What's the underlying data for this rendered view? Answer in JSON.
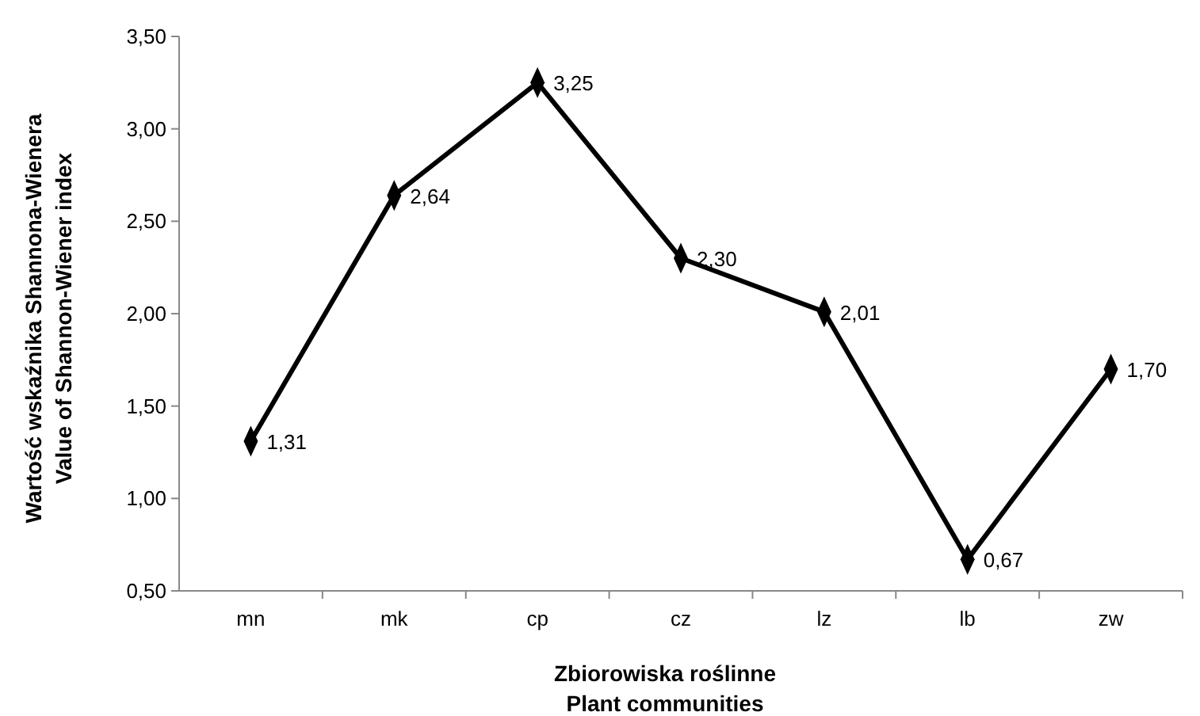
{
  "chart_data": {
    "type": "line",
    "xlabel": "Zbiorowiska roślinne\nPlant communities",
    "ylabel": "Wartość wskaźnika Shannona-Wienera\nValue of Shannon-Wiener index",
    "categories": [
      "mn",
      "mk",
      "cp",
      "cz",
      "lz",
      "lb",
      "zw"
    ],
    "series": [
      {
        "color": "#000000",
        "values": [
          1.31,
          2.64,
          3.25,
          2.3,
          2.01,
          0.67,
          1.7
        ],
        "value_labels": [
          "1,31",
          "2,64",
          "3,25",
          "2,30",
          "2,01",
          "0,67",
          "1,70"
        ]
      }
    ],
    "ylim": [
      0.5,
      3.5
    ],
    "yticks": [
      {
        "value": 0.5,
        "label": "0,50"
      },
      {
        "value": 1,
        "label": "1,00"
      },
      {
        "value": 1.5,
        "label": "1,50"
      },
      {
        "value": 2,
        "label": "2,00"
      },
      {
        "value": 2.5,
        "label": "2,50"
      },
      {
        "value": 3,
        "label": "3,00"
      },
      {
        "value": 3.5,
        "label": "3,50"
      }
    ],
    "grid": false,
    "marker": "diamond",
    "line_style": "solid"
  }
}
